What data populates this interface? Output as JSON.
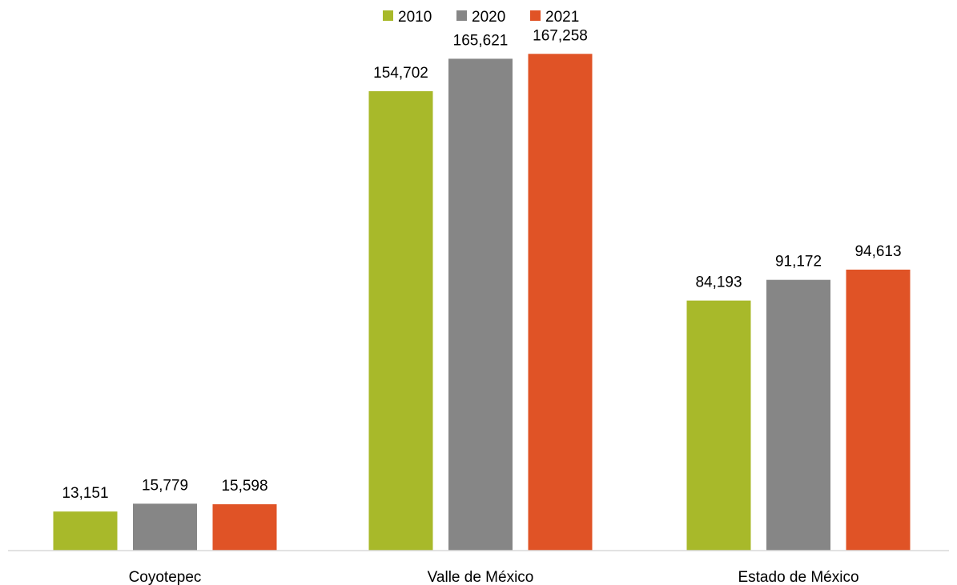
{
  "chart_data": {
    "type": "bar",
    "categories": [
      "Coyotepec",
      "Valle de México",
      "Estado de México"
    ],
    "series": [
      {
        "name": "2010",
        "color": "#a8b92a",
        "values": [
          13151,
          154702,
          84193
        ],
        "labels": [
          "13,151",
          "154,702",
          "84,193"
        ]
      },
      {
        "name": "2020",
        "color": "#868686",
        "values": [
          15779,
          165621,
          91172
        ],
        "labels": [
          "15,779",
          "165,621",
          "91,172"
        ]
      },
      {
        "name": "2021",
        "color": "#e05326",
        "values": [
          15598,
          167258,
          94613
        ],
        "labels": [
          "15,598",
          "167,258",
          "94,613"
        ]
      }
    ],
    "ylim": [
      0,
      180000
    ],
    "legend_position": "top-center",
    "grid": false,
    "data_labels": true,
    "axis_color": "#d9d9d9"
  }
}
